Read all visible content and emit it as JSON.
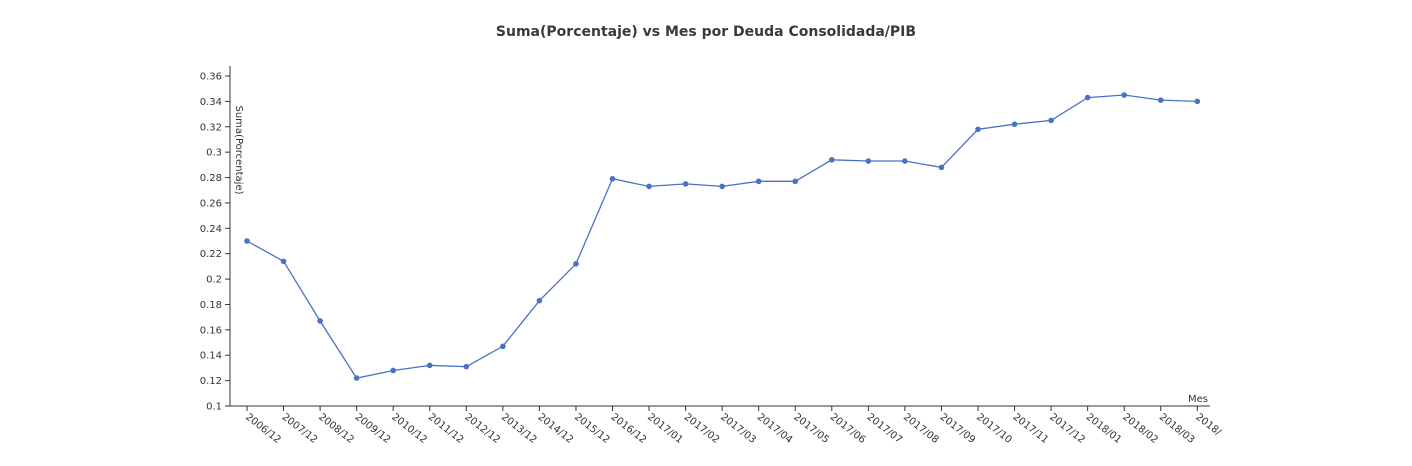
{
  "chart_data": {
    "type": "line",
    "title": "Suma(Porcentaje) vs Mes por Deuda Consolidada/PIB",
    "xlabel": "Mes",
    "ylabel": "Suma(Porcentaje)",
    "ylim": [
      0.1,
      0.36
    ],
    "yticks": [
      "0.1",
      "0.12",
      "0.14",
      "0.16",
      "0.18",
      "0.2",
      "0.22",
      "0.24",
      "0.26",
      "0.28",
      "0.3",
      "0.32",
      "0.34",
      "0.36"
    ],
    "categories": [
      "2006/12",
      "2007/12",
      "2008/12",
      "2009/12",
      "2010/12",
      "2011/12",
      "2012/12",
      "2013/12",
      "2014/12",
      "2015/12",
      "2016/12",
      "2017/01",
      "2017/02",
      "2017/03",
      "2017/04",
      "2017/05",
      "2017/06",
      "2017/07",
      "2017/08",
      "2017/09",
      "2017/10",
      "2017/11",
      "2017/12",
      "2018/01",
      "2018/02",
      "2018/03",
      "2018/"
    ],
    "series": [
      {
        "values": [
          0.23,
          0.214,
          0.167,
          0.122,
          0.128,
          0.132,
          0.131,
          0.147,
          0.183,
          0.212,
          0.279,
          0.273,
          0.275,
          0.273,
          0.277,
          0.277,
          0.294,
          0.293,
          0.293,
          0.288,
          0.318,
          0.322,
          0.325,
          0.343,
          0.345,
          0.341,
          0.34
        ]
      }
    ],
    "colors": {
      "line": "#4a72c4",
      "axis": "#333333"
    },
    "grid": false,
    "legend": "none"
  }
}
